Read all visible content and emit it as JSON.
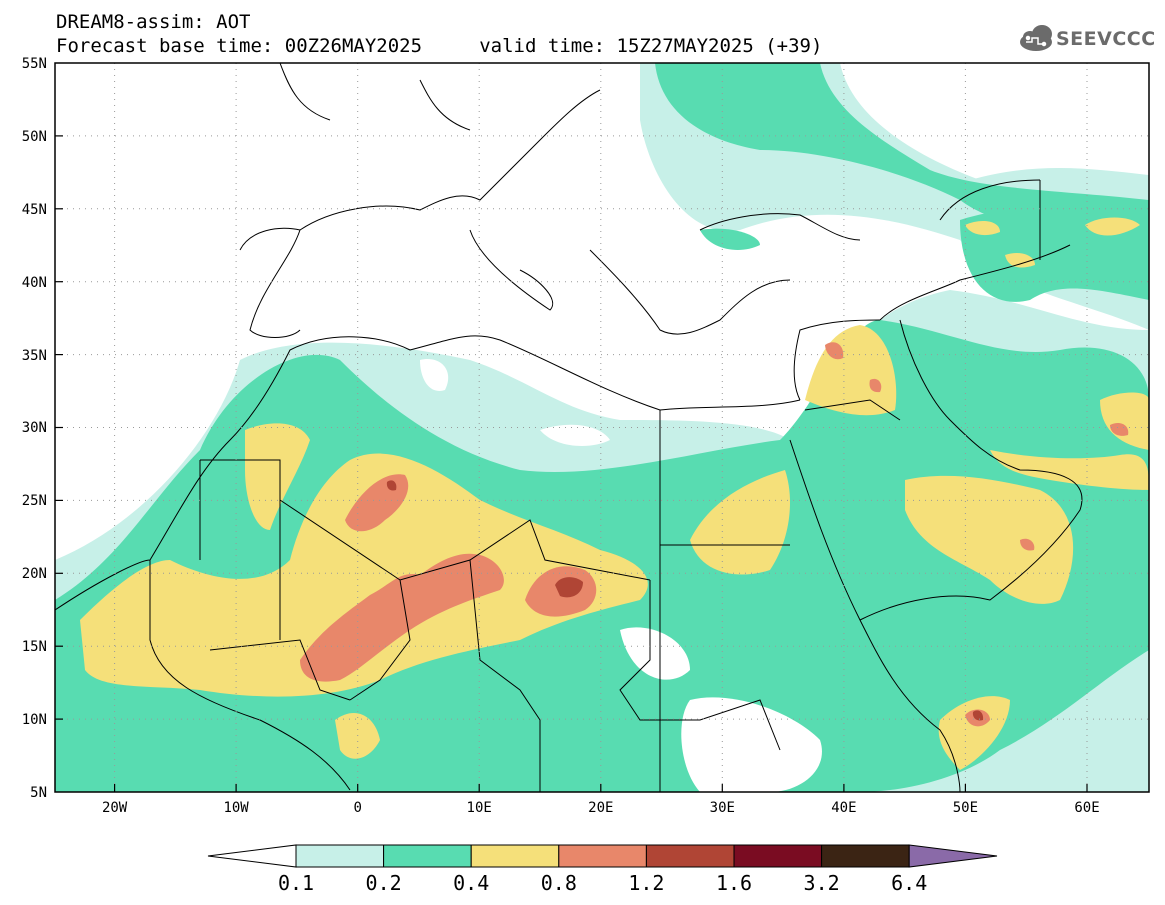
{
  "header": {
    "title": "DREAM8-assim: AOT",
    "subtitle": "Forecast base time: 00Z26MAY2025     valid time: 15Z27MAY2025 (+39)",
    "logo_text": "SEEVCCC"
  },
  "map": {
    "lon_range": [
      -25,
      65
    ],
    "lat_range": [
      5,
      55
    ],
    "lon_ticks": [
      "20W",
      "10W",
      "0",
      "10E",
      "20E",
      "30E",
      "40E",
      "50E",
      "60E"
    ],
    "lat_ticks": [
      "55N",
      "50N",
      "45N",
      "40N",
      "35N",
      "30N",
      "25N",
      "20N",
      "15N",
      "10N",
      "5N"
    ]
  },
  "legend": {
    "levels": [
      "0.1",
      "0.2",
      "0.4",
      "0.8",
      "1.2",
      "1.6",
      "3.2",
      "6.4"
    ],
    "colors": [
      "#ffffff",
      "#c7f0e8",
      "#58dcb1",
      "#f5e07a",
      "#e8876a",
      "#b04535",
      "#7a0c22",
      "#3b2414",
      "#8a6aa8"
    ]
  }
}
